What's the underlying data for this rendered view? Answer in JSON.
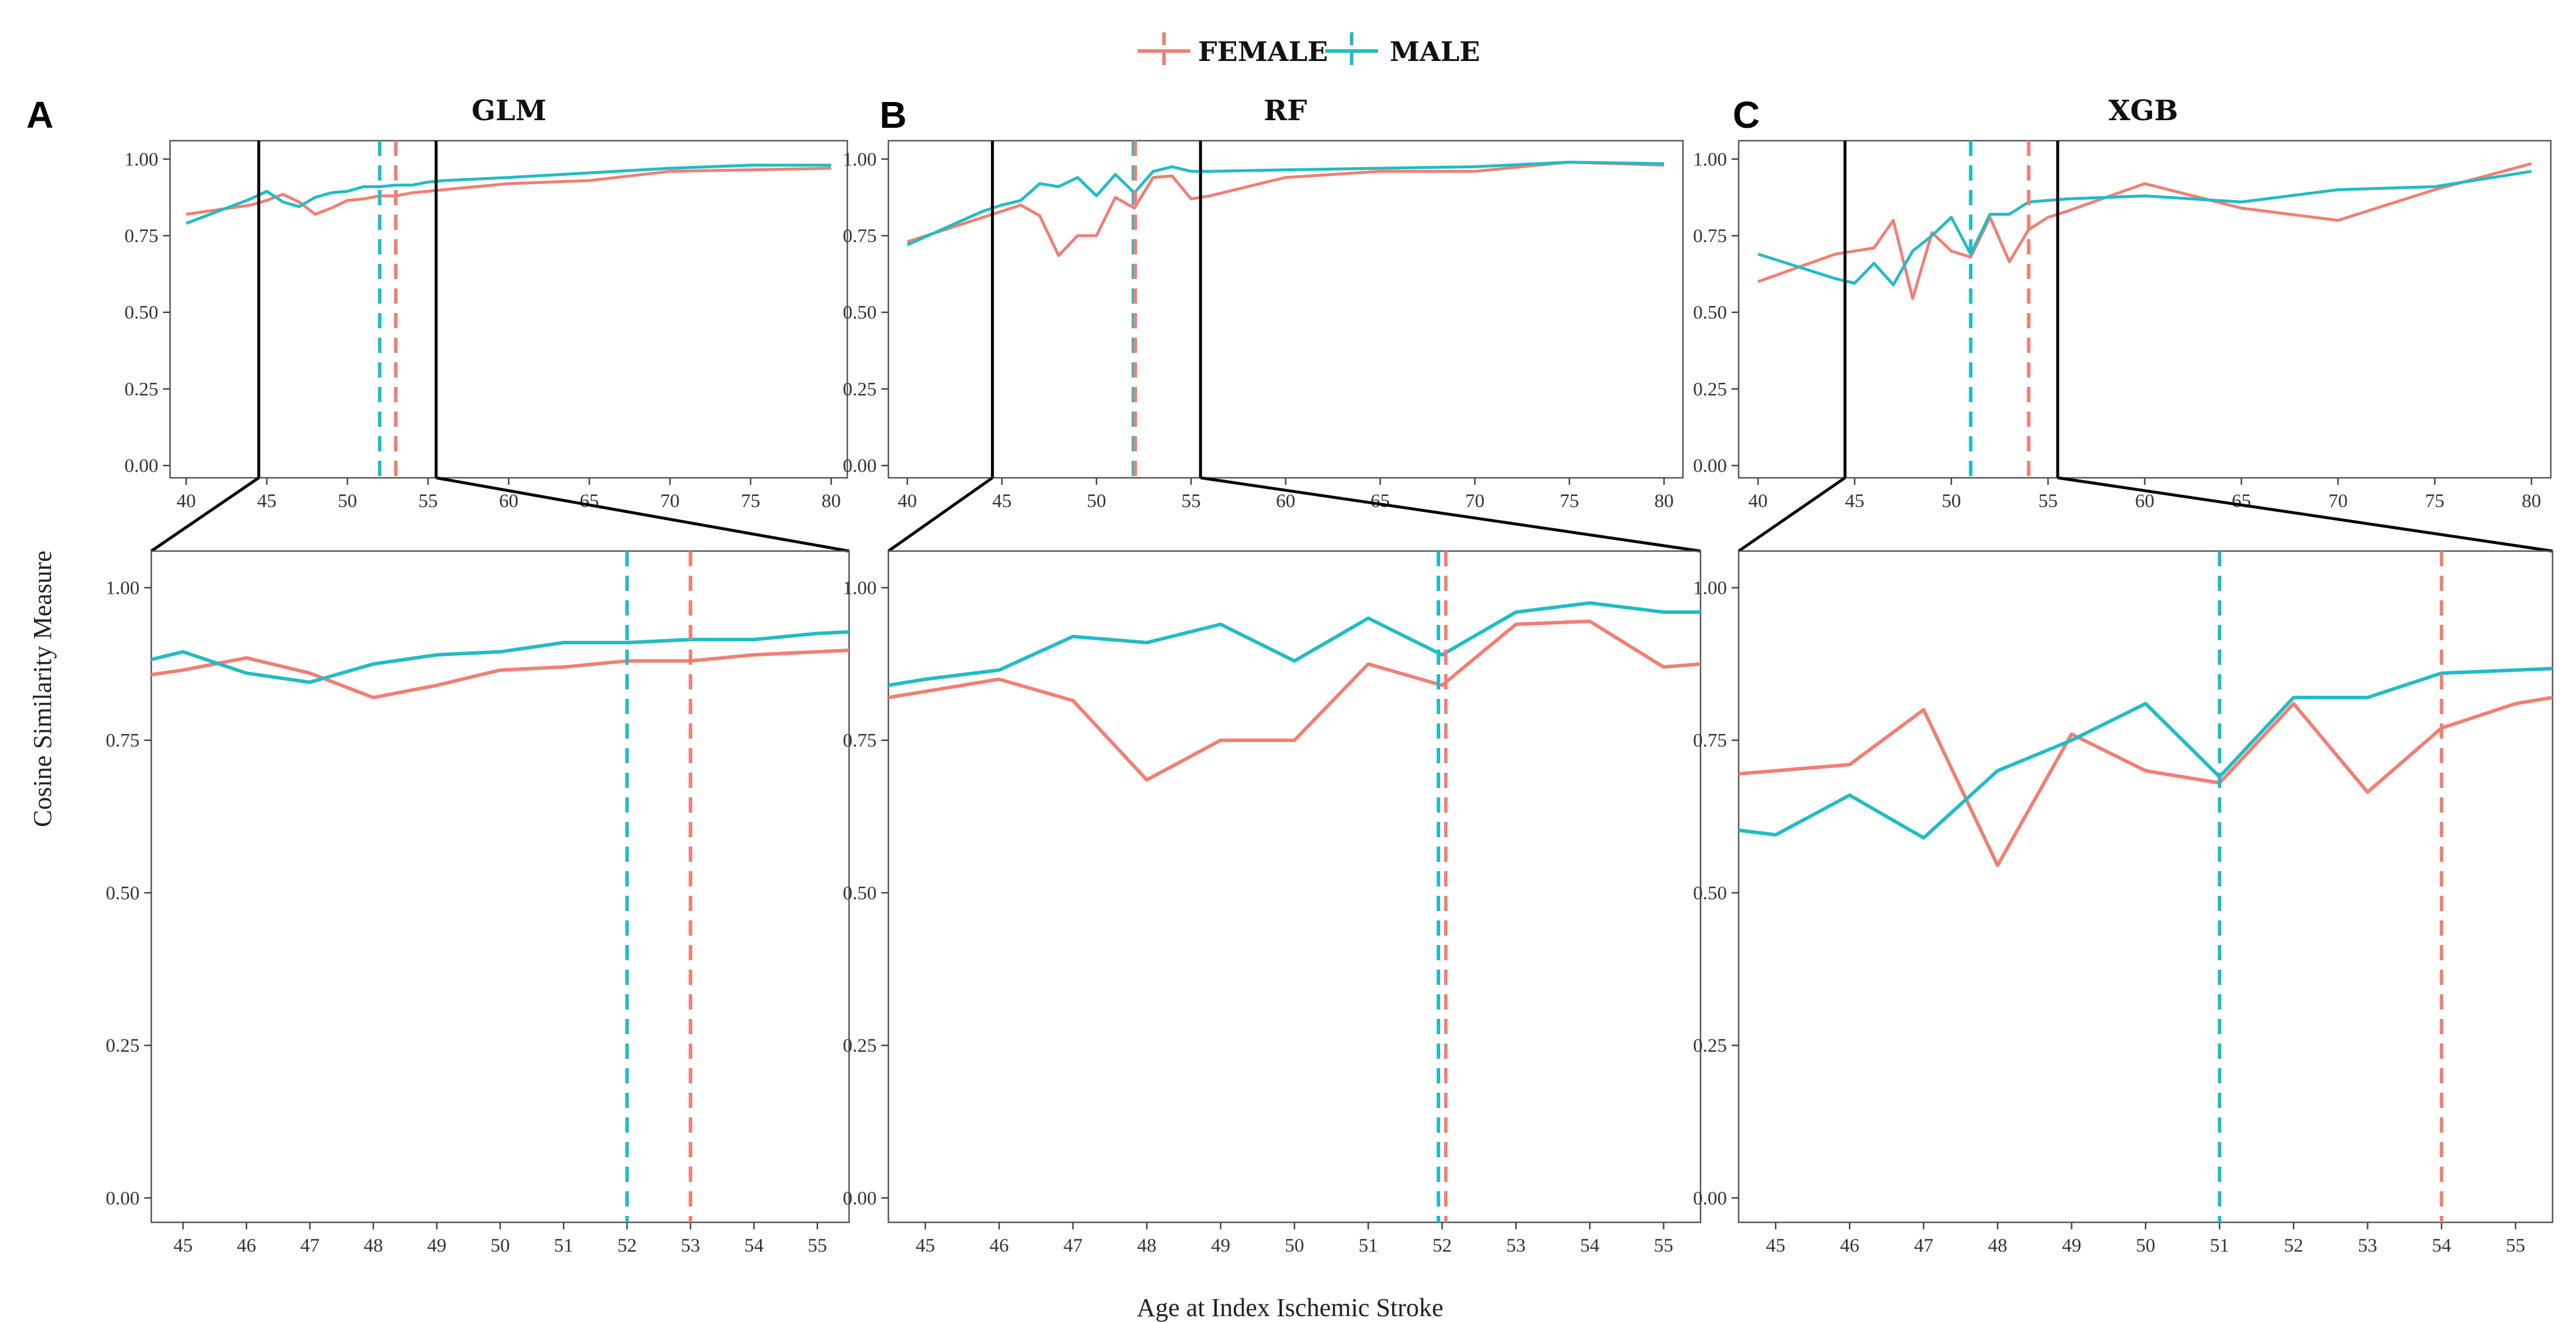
{
  "legend": {
    "female_label": "FEMALE",
    "male_label": "MALE"
  },
  "axes": {
    "ylabel": "Cosine Similarity Measure",
    "xlabel": "Age at Index Ischemic Stroke"
  },
  "colors": {
    "female": "#f07f74",
    "male": "#22bcc4"
  },
  "chart_data": [
    {
      "type": "line",
      "panel": "A",
      "title": "GLM",
      "xlabel": "Age at Index Ischemic Stroke",
      "ylabel": "Cosine Similarity Measure",
      "overview": {
        "xlim": [
          39,
          81
        ],
        "ylim": [
          -0.04,
          1.06
        ],
        "xticks": [
          40,
          45,
          50,
          55,
          60,
          65,
          70,
          75,
          80
        ],
        "yticks": [
          "0.00",
          "0.25",
          "0.50",
          "0.75",
          "1.00"
        ]
      },
      "zoom": {
        "xlim": [
          44.5,
          55.5
        ],
        "ylim": [
          -0.04,
          1.06
        ],
        "xticks": [
          45,
          46,
          47,
          48,
          49,
          50,
          51,
          52,
          53,
          54,
          55
        ],
        "yticks": [
          "0.00",
          "0.25",
          "0.50",
          "0.75",
          "1.00"
        ]
      },
      "zoom_window": [
        44.5,
        55.5
      ],
      "vlines": {
        "female": 53,
        "male": 52
      },
      "series": [
        {
          "name": "FEMALE",
          "x": [
            40,
            44,
            45,
            46,
            47,
            48,
            49,
            50,
            51,
            52,
            53,
            54,
            55,
            56,
            60,
            65,
            70,
            75,
            80
          ],
          "values": [
            0.82,
            0.85,
            0.865,
            0.885,
            0.86,
            0.82,
            0.84,
            0.865,
            0.87,
            0.88,
            0.88,
            0.89,
            0.895,
            0.9,
            0.92,
            0.93,
            0.96,
            0.965,
            0.97
          ]
        },
        {
          "name": "MALE",
          "x": [
            40,
            44,
            45,
            46,
            47,
            48,
            49,
            50,
            51,
            52,
            53,
            54,
            55,
            56,
            60,
            65,
            70,
            75,
            80
          ],
          "values": [
            0.79,
            0.87,
            0.895,
            0.86,
            0.845,
            0.875,
            0.89,
            0.895,
            0.91,
            0.91,
            0.915,
            0.915,
            0.925,
            0.93,
            0.94,
            0.955,
            0.97,
            0.98,
            0.98
          ]
        }
      ]
    },
    {
      "type": "line",
      "panel": "B",
      "title": "RF",
      "xlabel": "Age at Index Ischemic Stroke",
      "ylabel": "Cosine Similarity Measure",
      "overview": {
        "xlim": [
          39,
          81
        ],
        "ylim": [
          -0.04,
          1.06
        ],
        "xticks": [
          40,
          45,
          50,
          55,
          60,
          65,
          70,
          75,
          80
        ],
        "yticks": [
          "0.00",
          "0.25",
          "0.50",
          "0.75",
          "1.00"
        ]
      },
      "zoom": {
        "xlim": [
          44.5,
          55.5
        ],
        "ylim": [
          -0.04,
          1.06
        ],
        "xticks": [
          45,
          46,
          47,
          48,
          49,
          50,
          51,
          52,
          53,
          54,
          55
        ],
        "yticks": [
          "0.00",
          "0.25",
          "0.50",
          "0.75",
          "1.00"
        ]
      },
      "zoom_window": [
        44.5,
        55.5
      ],
      "vlines": {
        "female": 52.05,
        "male": 51.95
      },
      "series": [
        {
          "name": "FEMALE",
          "x": [
            40,
            44,
            45,
            46,
            47,
            48,
            49,
            50,
            51,
            52,
            53,
            54,
            55,
            56,
            60,
            65,
            70,
            75,
            80
          ],
          "values": [
            0.73,
            0.81,
            0.83,
            0.85,
            0.815,
            0.685,
            0.75,
            0.75,
            0.875,
            0.84,
            0.94,
            0.945,
            0.87,
            0.88,
            0.94,
            0.96,
            0.96,
            0.99,
            0.98
          ]
        },
        {
          "name": "MALE",
          "x": [
            40,
            44,
            45,
            46,
            47,
            48,
            49,
            50,
            51,
            52,
            53,
            54,
            55,
            56,
            60,
            65,
            70,
            75,
            80
          ],
          "values": [
            0.72,
            0.83,
            0.85,
            0.865,
            0.92,
            0.91,
            0.94,
            0.88,
            0.95,
            0.89,
            0.96,
            0.975,
            0.96,
            0.96,
            0.965,
            0.97,
            0.975,
            0.99,
            0.985
          ]
        }
      ]
    },
    {
      "type": "line",
      "panel": "C",
      "title": "XGB",
      "xlabel": "Age at Index Ischemic Stroke",
      "ylabel": "Cosine Similarity Measure",
      "overview": {
        "xlim": [
          39,
          81
        ],
        "ylim": [
          -0.04,
          1.06
        ],
        "xticks": [
          40,
          45,
          50,
          55,
          60,
          65,
          70,
          75,
          80
        ],
        "yticks": [
          "0.00",
          "0.25",
          "0.50",
          "0.75",
          "1.00"
        ]
      },
      "zoom": {
        "xlim": [
          44.5,
          55.5
        ],
        "ylim": [
          -0.04,
          1.06
        ],
        "xticks": [
          45,
          46,
          47,
          48,
          49,
          50,
          51,
          52,
          53,
          54,
          55
        ],
        "yticks": [
          "0.00",
          "0.25",
          "0.50",
          "0.75",
          "1.00"
        ]
      },
      "zoom_window": [
        44.5,
        55.5
      ],
      "vlines": {
        "female": 54,
        "male": 51
      },
      "series": [
        {
          "name": "FEMALE",
          "x": [
            40,
            44,
            45,
            46,
            47,
            48,
            49,
            50,
            51,
            52,
            53,
            54,
            55,
            56,
            60,
            65,
            70,
            75,
            80
          ],
          "values": [
            0.6,
            0.69,
            0.7,
            0.71,
            0.8,
            0.545,
            0.76,
            0.7,
            0.68,
            0.81,
            0.665,
            0.77,
            0.81,
            0.83,
            0.92,
            0.84,
            0.8,
            0.9,
            0.985
          ]
        },
        {
          "name": "MALE",
          "x": [
            40,
            44,
            45,
            46,
            47,
            48,
            49,
            50,
            51,
            52,
            53,
            54,
            55,
            56,
            60,
            65,
            70,
            75,
            80
          ],
          "values": [
            0.69,
            0.61,
            0.595,
            0.66,
            0.59,
            0.7,
            0.75,
            0.81,
            0.69,
            0.82,
            0.82,
            0.86,
            0.865,
            0.87,
            0.88,
            0.86,
            0.9,
            0.91,
            0.96
          ]
        }
      ]
    }
  ]
}
